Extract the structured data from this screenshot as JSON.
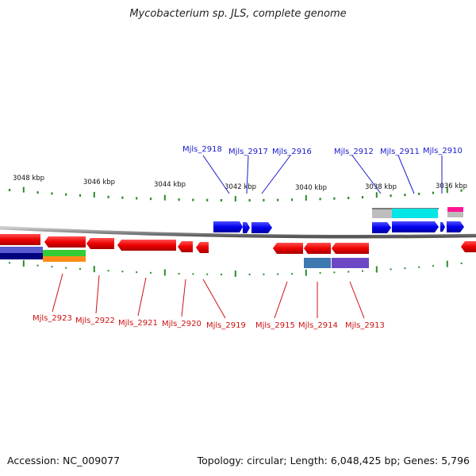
{
  "title": "Mycobacterium sp. JLS, complete genome",
  "footer": {
    "accession": "Accession: NC_009077",
    "info": "Topology: circular; Length: 6,048,425 bp; Genes: 5,796"
  },
  "colors": {
    "forward_gene": "#0000ee",
    "reverse_gene": "#ee0000",
    "backbone": "#888888",
    "tick": "#2a8a2a",
    "label_top": "#1a1acc",
    "label_bottom": "#cc1111"
  },
  "scale_labels": [
    "3048 kbp",
    "3046 kbp",
    "3044 kbp",
    "3042 kbp",
    "3040 kbp",
    "3038 kbp",
    "3036 kbp"
  ],
  "top_labels": [
    "Mjls_2918",
    "Mjls_2917",
    "Mjls_2916",
    "Mjls_2912",
    "Mjls_2911",
    "Mjls_2910"
  ],
  "bottom_labels": [
    "Mjls_2923",
    "Mjls_2922",
    "Mjls_2921",
    "Mjls_2920",
    "Mjls_2919",
    "Mjls_2915",
    "Mjls_2914",
    "Mjls_2913"
  ]
}
